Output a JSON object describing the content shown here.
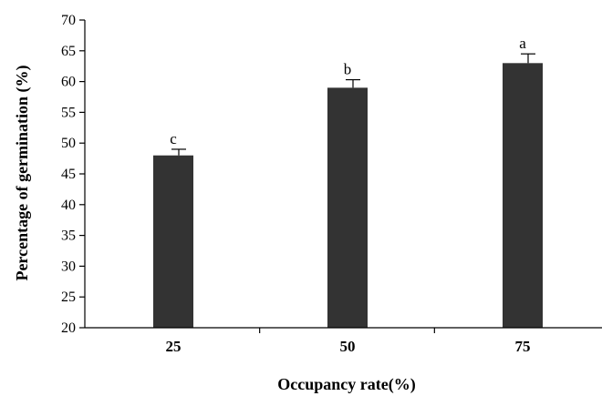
{
  "chart_data": {
    "type": "bar",
    "title": "",
    "xlabel": "Occupancy rate(%)",
    "ylabel": "Percentage  of  germination  (%)",
    "categories": [
      "25",
      "50",
      "75"
    ],
    "values": [
      48,
      59,
      63
    ],
    "errors": [
      1.0,
      1.3,
      1.5
    ],
    "significance_letters": [
      "c",
      "b",
      "a"
    ],
    "ylim": [
      20,
      70
    ],
    "yticks": [
      "20",
      "25",
      "30",
      "35",
      "40",
      "45",
      "50",
      "55",
      "60",
      "65",
      "70"
    ],
    "grid": false,
    "legend": "none",
    "bar_color": "#333333"
  }
}
